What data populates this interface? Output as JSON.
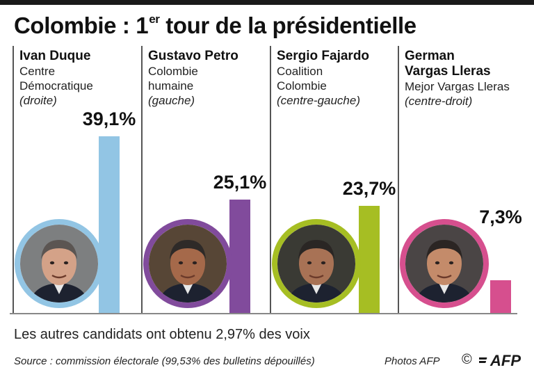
{
  "title": {
    "main": "Colombie : 1",
    "sup": "er",
    "rest": " tour de la présidentielle"
  },
  "chart_data": {
    "type": "bar",
    "title": "Colombie : 1er tour de la présidentielle",
    "categories": [
      "Ivan Duque",
      "Gustavo Petro",
      "Sergio Fajardo",
      "German Vargas Lleras"
    ],
    "values": [
      39.1,
      25.1,
      23.7,
      7.3
    ],
    "value_labels": [
      "39,1%",
      "25,1%",
      "23,7%",
      "7,3%"
    ],
    "ylim": [
      0,
      45
    ],
    "grid": false,
    "legend": "none"
  },
  "candidates": [
    {
      "name": "Ivan Duque",
      "party": "Centre\nDémocratique",
      "lean": "(droite)",
      "pct_label": "39,1%",
      "value": 39.1,
      "color": "#92c5e4",
      "face": "#d4a288",
      "hair": "#5b5552",
      "bg": "#7d7f80"
    },
    {
      "name": "Gustavo Petro",
      "party": "Colombie\nhumaine",
      "lean": "(gauche)",
      "pct_label": "25,1%",
      "value": 25.1,
      "color": "#814b9c",
      "face": "#a5694a",
      "hair": "#2e2a28",
      "bg": "#574636"
    },
    {
      "name": "Sergio Fajardo",
      "party": "Coalition\nColombie",
      "lean": "(centre-gauche)",
      "pct_label": "23,7%",
      "value": 23.7,
      "color": "#a6be23",
      "face": "#a87255",
      "hair": "#2a2624",
      "bg": "#3a3a34"
    },
    {
      "name": "German\nVargas Lleras",
      "party": "Mejor Vargas Lleras",
      "lean": "(centre-droit)",
      "pct_label": "7,3%",
      "value": 7.3,
      "color": "#d64f8e",
      "face": "#c48b6a",
      "hair": "#2b2523",
      "bg": "#4a4545"
    }
  ],
  "footer": {
    "others": "Les autres candidats ont obtenu 2,97% des voix",
    "source": "Source : commission électorale (99,53% des bulletins dépouillés)",
    "credit": "Photos AFP",
    "copyright": "©",
    "logo": "AFP"
  },
  "icons": {
    "logo": "afp-logo"
  }
}
